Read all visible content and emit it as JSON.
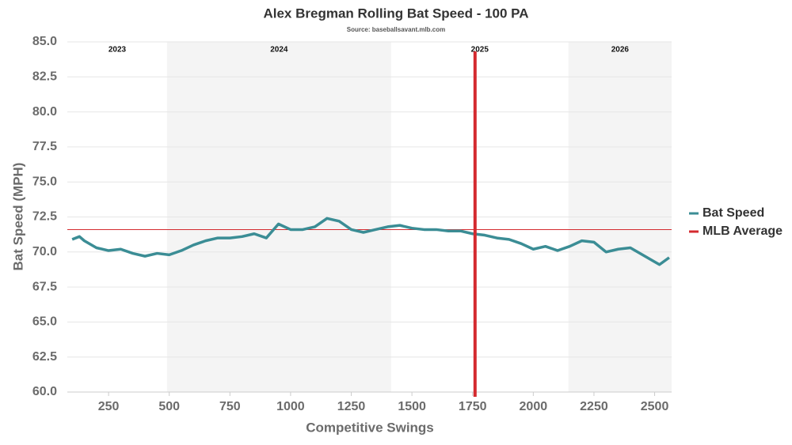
{
  "chart_data": {
    "type": "line",
    "title": "Alex Bregman Rolling Bat Speed - 100 PA",
    "subtitle": "Source: baseballsavant.mlb.com",
    "x_label": "Competitive Swings",
    "y_label": "Bat Speed (MPH)",
    "x": [
      100,
      130,
      150,
      200,
      250,
      300,
      350,
      400,
      450,
      500,
      550,
      600,
      650,
      700,
      750,
      800,
      850,
      900,
      950,
      1000,
      1050,
      1100,
      1150,
      1200,
      1250,
      1300,
      1350,
      1400,
      1450,
      1500,
      1550,
      1600,
      1650,
      1700,
      1750,
      1800,
      1850,
      1900,
      1950,
      2000,
      2050,
      2100,
      2150,
      2200,
      2250,
      2300,
      2350,
      2400,
      2450,
      2500,
      2520,
      2560
    ],
    "series": [
      {
        "name": "Bat Speed",
        "color": "#3b8d95",
        "values": [
          70.9,
          71.1,
          70.8,
          70.3,
          70.1,
          70.2,
          69.9,
          69.7,
          69.9,
          69.8,
          70.1,
          70.5,
          70.8,
          71.0,
          71.0,
          71.1,
          71.3,
          71.0,
          72.0,
          71.6,
          71.6,
          71.8,
          72.4,
          72.2,
          71.6,
          71.4,
          71.6,
          71.8,
          71.9,
          71.7,
          71.6,
          71.6,
          71.5,
          71.5,
          71.3,
          71.2,
          71.0,
          70.9,
          70.6,
          70.2,
          70.4,
          70.1,
          70.4,
          70.8,
          70.7,
          70.0,
          70.2,
          70.3,
          69.8,
          69.3,
          69.1,
          69.6
        ]
      }
    ],
    "reference_line": {
      "name": "MLB Average",
      "value": 71.6,
      "color": "#d42a2f"
    },
    "marker_x": 1760,
    "seasons": [
      {
        "label": "2023",
        "start": 80,
        "end": 491,
        "shaded": false
      },
      {
        "label": "2024",
        "start": 491,
        "end": 1414,
        "shaded": true
      },
      {
        "label": "2025",
        "start": 1414,
        "end": 2145,
        "shaded": false
      },
      {
        "label": "2026",
        "start": 2145,
        "end": 2570,
        "shaded": true
      }
    ],
    "xlim": [
      80,
      2570
    ],
    "xticks": [
      250,
      500,
      750,
      1000,
      1250,
      1500,
      1750,
      2000,
      2250,
      2500
    ],
    "ylim": [
      60,
      85
    ],
    "yticks": [
      {
        "value": 60,
        "label": "60.0"
      },
      {
        "value": 62.5,
        "label": "62.5"
      },
      {
        "value": 65,
        "label": "65.0"
      },
      {
        "value": 67.5,
        "label": "67.5"
      },
      {
        "value": 70,
        "label": "70.0"
      },
      {
        "value": 72.5,
        "label": "72.5"
      },
      {
        "value": 75,
        "label": "75.0"
      },
      {
        "value": 77.5,
        "label": "77.5"
      },
      {
        "value": 80,
        "label": "80.0"
      },
      {
        "value": 82.5,
        "label": "82.5"
      },
      {
        "value": 85,
        "label": "85.0"
      }
    ],
    "grid": true
  }
}
